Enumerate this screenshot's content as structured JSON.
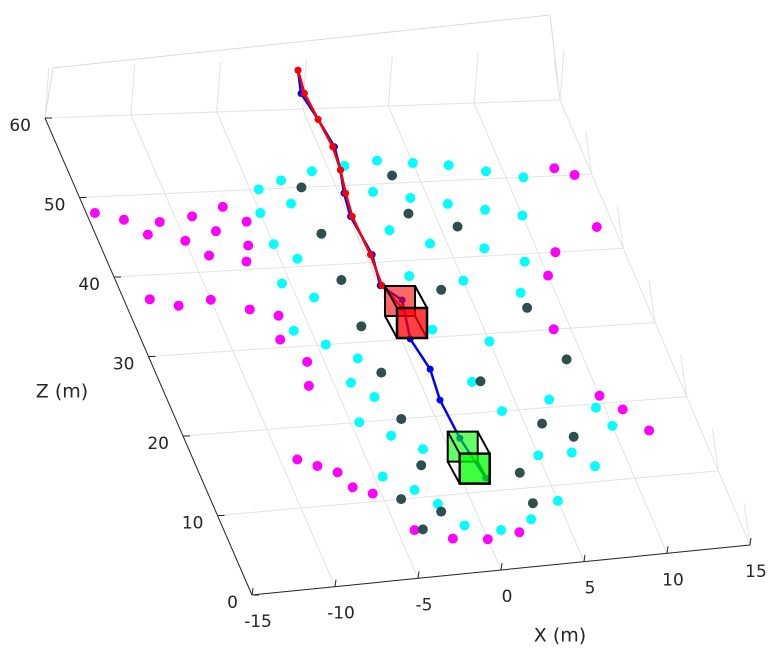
{
  "chart_data": {
    "type": "scatter",
    "xlabel": "X (m)",
    "ylabel": "Z (m)",
    "xlim": [
      -15,
      15
    ],
    "ylim": [
      0,
      60
    ],
    "xticks": [
      -15,
      -10,
      -5,
      0,
      5,
      10,
      15
    ],
    "yticks": [
      0,
      10,
      20,
      30,
      40,
      50,
      60
    ],
    "grid": true,
    "series": [
      {
        "color": "#ff00ff",
        "marker": "point",
        "x": [
          -14.5,
          -13,
          -11,
          -9,
          -7,
          -6,
          -12,
          -10,
          -8,
          -6.5,
          -9,
          -7,
          -13.5,
          -12,
          -10,
          -8,
          -6.5,
          -7,
          -6,
          -6.5,
          -9,
          -8,
          -7,
          -6.5,
          -5.5,
          -4,
          -2,
          0,
          2,
          13,
          14,
          14,
          11,
          10,
          9,
          10,
          11,
          12
        ],
        "values": [
          48,
          47,
          46.5,
          47,
          48,
          46,
          45,
          44,
          45,
          43,
          42,
          41,
          37,
          36,
          36.5,
          35,
          34,
          31,
          28,
          25,
          16,
          15,
          14,
          12,
          11,
          6,
          4.5,
          4,
          4.5,
          51,
          50,
          43,
          40,
          37,
          30,
          21,
          19,
          16
        ]
      },
      {
        "color": "#00ffff",
        "marker": "point",
        "x": [
          -4.5,
          -3,
          -1,
          1,
          3,
          5,
          7,
          9,
          11,
          -5,
          -3,
          2,
          4,
          6,
          8,
          10,
          -5,
          -4,
          2,
          4,
          7,
          9,
          -5.5,
          -4,
          2,
          5,
          8,
          -6,
          -4.5,
          -3,
          2,
          5,
          -4,
          -3,
          3,
          -4.5,
          -3,
          -1.5,
          4,
          7,
          9.5,
          10,
          -4.5,
          -3,
          -2,
          5,
          7,
          8,
          -1,
          1,
          3,
          5
        ],
        "values": [
          50,
          51,
          52,
          52.5,
          53,
          52.5,
          52,
          51,
          50,
          47,
          48,
          49,
          48,
          47,
          46,
          45,
          43,
          41,
          44,
          42,
          41,
          39,
          38,
          36,
          38,
          37,
          35,
          32,
          30,
          28,
          31,
          29,
          25,
          23,
          24,
          20,
          18,
          16,
          20,
          21,
          19.5,
          17,
          13,
          11,
          9,
          14,
          14,
          12,
          6,
          5,
          6,
          8
        ]
      },
      {
        "color": "#2f4f4f",
        "marker": "point",
        "x": [
          -2,
          -2,
          -2,
          -2,
          -2,
          -2,
          -2,
          -2,
          3.5,
          3.5,
          3.5,
          3.5,
          3.5,
          3.5,
          -4,
          -3.5,
          6,
          7.5,
          8,
          6,
          9
        ],
        "values": [
          8,
          14,
          20,
          26,
          32,
          38,
          44,
          50,
          8,
          12,
          24,
          36,
          46,
          51,
          10,
          6,
          18,
          16,
          33,
          44,
          26
        ]
      },
      {
        "color": "#0000ff",
        "marker": "line",
        "x": [
          0.7,
          0.3,
          0.64,
          0.9,
          0.67,
          0.3,
          0.1,
          0.4,
          0.1,
          1.0,
          0.5,
          0.9,
          0.7,
          0.9,
          1.4
        ],
        "values": [
          65,
          62,
          58.6,
          55,
          52,
          49,
          46,
          41,
          37,
          35,
          30,
          26,
          22,
          17,
          11.7
        ]
      },
      {
        "color": "#ff0000",
        "marker": "line",
        "x": [
          0.7,
          0.5,
          0.64,
          0.8,
          0.67,
          0.4,
          0.2,
          0.3,
          0.2,
          0.8
        ],
        "values": [
          65,
          62,
          58.6,
          55,
          52,
          49,
          46,
          41,
          37,
          34
        ]
      }
    ],
    "boxes": [
      {
        "color": "#00ff00",
        "x": 1,
        "value": 13
      },
      {
        "color": "#ff0000",
        "x": 1,
        "value": 32
      }
    ]
  }
}
